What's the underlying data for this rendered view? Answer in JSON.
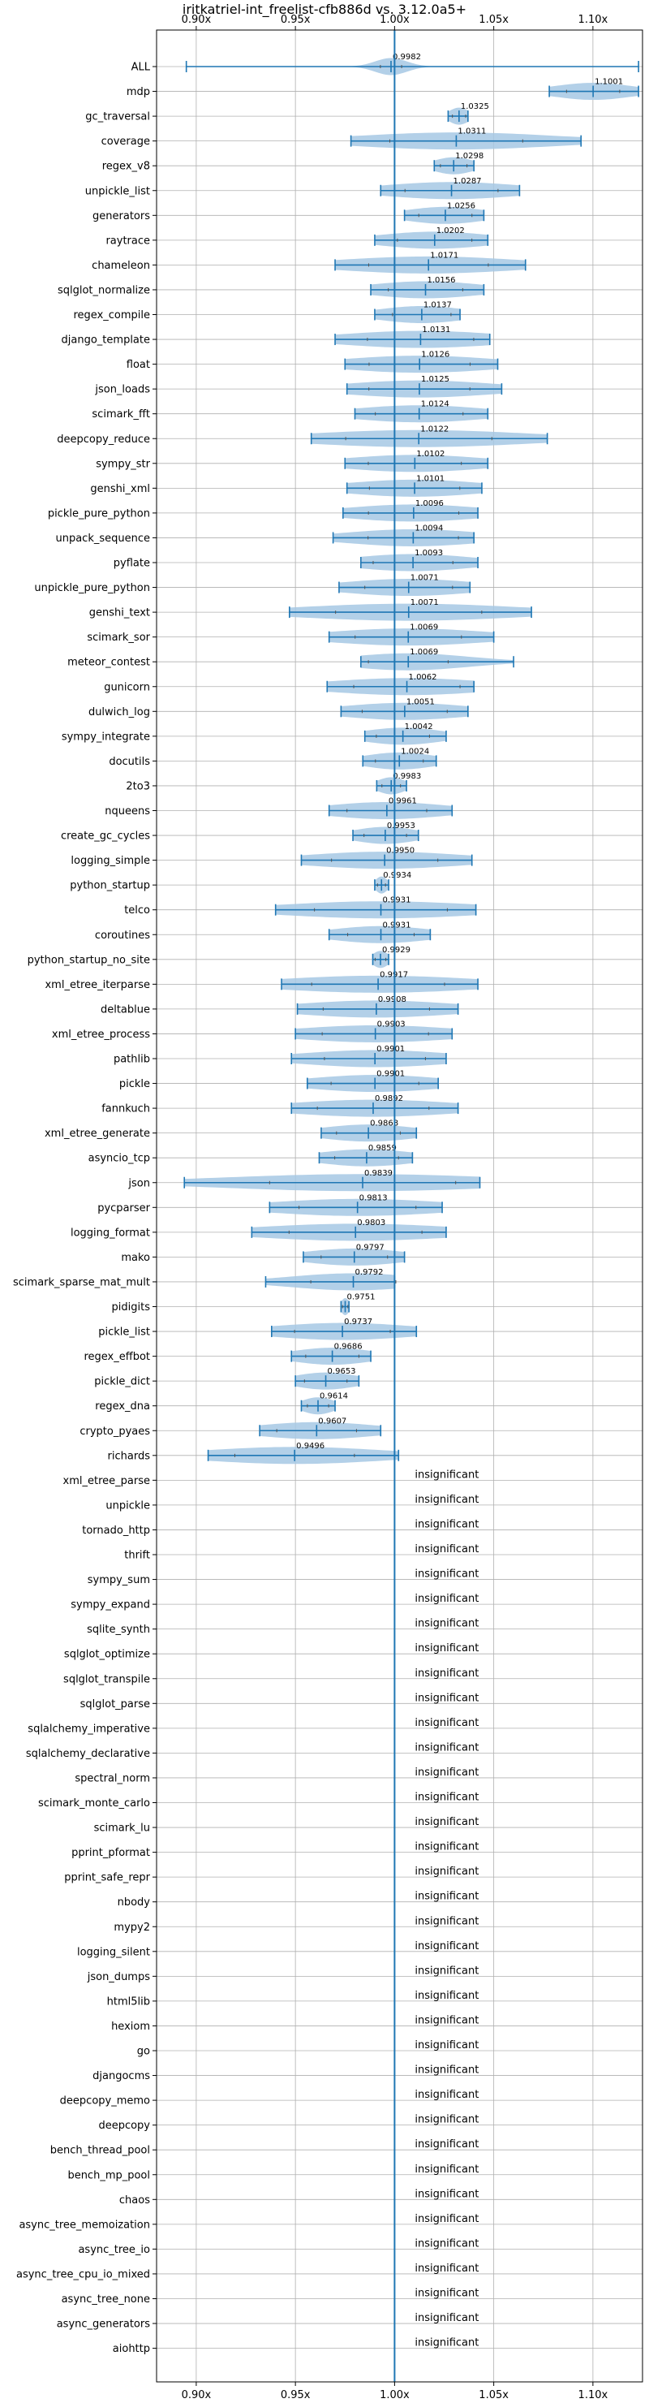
{
  "chart_data": {
    "type": "violin",
    "title": "iritkatriel-int_freelist-cfb886d vs. 3.12.0a5+",
    "xlim": [
      0.88,
      1.125
    ],
    "xticks": [
      "0.90x",
      "0.95x",
      "1.00x",
      "1.05x",
      "1.10x"
    ],
    "xtick_values": [
      0.9,
      0.95,
      1.0,
      1.05,
      1.1
    ],
    "reference_line": 1.0,
    "insignificant_label": "insignificant",
    "colors": {
      "violin": "#a6c8e4",
      "line": "#1f77b4",
      "grid": "#b0b0b0"
    },
    "benchmarks": [
      {
        "name": "ALL",
        "mean": 0.9982,
        "label": "0.9982",
        "min": 0.895,
        "max": 1.123,
        "spread": 0.008
      },
      {
        "name": "mdp",
        "mean": 1.1001,
        "label": "1.1001",
        "min": 1.078,
        "max": 1.123,
        "spread": 0.02
      },
      {
        "name": "gc_traversal",
        "mean": 1.0325,
        "label": "1.0325",
        "min": 1.027,
        "max": 1.037,
        "spread": 0.005
      },
      {
        "name": "coverage",
        "mean": 1.0311,
        "label": "1.0311",
        "min": 0.978,
        "max": 1.094,
        "spread": 0.05
      },
      {
        "name": "regex_v8",
        "mean": 1.0298,
        "label": "1.0298",
        "min": 1.02,
        "max": 1.04,
        "spread": 0.01
      },
      {
        "name": "unpickle_list",
        "mean": 1.0287,
        "label": "1.0287",
        "min": 0.993,
        "max": 1.063,
        "spread": 0.035
      },
      {
        "name": "generators",
        "mean": 1.0256,
        "label": "1.0256",
        "min": 1.005,
        "max": 1.045,
        "spread": 0.02
      },
      {
        "name": "raytrace",
        "mean": 1.0202,
        "label": "1.0202",
        "min": 0.99,
        "max": 1.047,
        "spread": 0.028
      },
      {
        "name": "chameleon",
        "mean": 1.0171,
        "label": "1.0171",
        "min": 0.97,
        "max": 1.066,
        "spread": 0.045
      },
      {
        "name": "sqlglot_normalize",
        "mean": 1.0156,
        "label": "1.0156",
        "min": 0.988,
        "max": 1.045,
        "spread": 0.028
      },
      {
        "name": "regex_compile",
        "mean": 1.0137,
        "label": "1.0137",
        "min": 0.99,
        "max": 1.033,
        "spread": 0.022
      },
      {
        "name": "django_template",
        "mean": 1.0131,
        "label": "1.0131",
        "min": 0.97,
        "max": 1.048,
        "spread": 0.04
      },
      {
        "name": "float",
        "mean": 1.0126,
        "label": "1.0126",
        "min": 0.975,
        "max": 1.052,
        "spread": 0.038
      },
      {
        "name": "json_loads",
        "mean": 1.0125,
        "label": "1.0125",
        "min": 0.976,
        "max": 1.054,
        "spread": 0.038
      },
      {
        "name": "scimark_fft",
        "mean": 1.0124,
        "label": "1.0124",
        "min": 0.98,
        "max": 1.047,
        "spread": 0.033
      },
      {
        "name": "deepcopy_reduce",
        "mean": 1.0122,
        "label": "1.0122",
        "min": 0.958,
        "max": 1.077,
        "spread": 0.055
      },
      {
        "name": "sympy_str",
        "mean": 1.0102,
        "label": "1.0102",
        "min": 0.975,
        "max": 1.047,
        "spread": 0.035
      },
      {
        "name": "genshi_xml",
        "mean": 1.0101,
        "label": "1.0101",
        "min": 0.976,
        "max": 1.044,
        "spread": 0.034
      },
      {
        "name": "pickle_pure_python",
        "mean": 1.0096,
        "label": "1.0096",
        "min": 0.974,
        "max": 1.042,
        "spread": 0.034
      },
      {
        "name": "unpack_sequence",
        "mean": 1.0094,
        "label": "1.0094",
        "min": 0.969,
        "max": 1.04,
        "spread": 0.034
      },
      {
        "name": "pyflate",
        "mean": 1.0093,
        "label": "1.0093",
        "min": 0.983,
        "max": 1.042,
        "spread": 0.03
      },
      {
        "name": "unpickle_pure_python",
        "mean": 1.0071,
        "label": "1.0071",
        "min": 0.972,
        "max": 1.038,
        "spread": 0.033
      },
      {
        "name": "genshi_text",
        "mean": 1.0071,
        "label": "1.0071",
        "min": 0.947,
        "max": 1.069,
        "spread": 0.055
      },
      {
        "name": "scimark_sor",
        "mean": 1.0069,
        "label": "1.0069",
        "min": 0.967,
        "max": 1.05,
        "spread": 0.04
      },
      {
        "name": "meteor_contest",
        "mean": 1.0069,
        "label": "1.0069",
        "min": 0.983,
        "max": 1.06,
        "spread": 0.03
      },
      {
        "name": "gunicorn",
        "mean": 1.0062,
        "label": "1.0062",
        "min": 0.966,
        "max": 1.04,
        "spread": 0.04
      },
      {
        "name": "dulwich_log",
        "mean": 1.0051,
        "label": "1.0051",
        "min": 0.973,
        "max": 1.037,
        "spread": 0.032
      },
      {
        "name": "sympy_integrate",
        "mean": 1.0042,
        "label": "1.0042",
        "min": 0.985,
        "max": 1.026,
        "spread": 0.02
      },
      {
        "name": "docutils",
        "mean": 1.0024,
        "label": "1.0024",
        "min": 0.984,
        "max": 1.021,
        "spread": 0.018
      },
      {
        "name": "2to3",
        "mean": 0.9983,
        "label": "0.9983",
        "min": 0.991,
        "max": 1.006,
        "spread": 0.007
      },
      {
        "name": "nqueens",
        "mean": 0.9961,
        "label": "0.9961",
        "min": 0.967,
        "max": 1.029,
        "spread": 0.03
      },
      {
        "name": "create_gc_cycles",
        "mean": 0.9953,
        "label": "0.9953",
        "min": 0.979,
        "max": 1.012,
        "spread": 0.016
      },
      {
        "name": "logging_simple",
        "mean": 0.995,
        "label": "0.9950",
        "min": 0.953,
        "max": 1.039,
        "spread": 0.04
      },
      {
        "name": "python_startup",
        "mean": 0.9934,
        "label": "0.9934",
        "min": 0.99,
        "max": 0.997,
        "spread": 0.003
      },
      {
        "name": "telco",
        "mean": 0.9931,
        "label": "0.9931",
        "min": 0.94,
        "max": 1.041,
        "spread": 0.05
      },
      {
        "name": "coroutines",
        "mean": 0.9931,
        "label": "0.9931",
        "min": 0.967,
        "max": 1.018,
        "spread": 0.025
      },
      {
        "name": "python_startup_no_site",
        "mean": 0.9929,
        "label": "0.9929",
        "min": 0.989,
        "max": 0.997,
        "spread": 0.004
      },
      {
        "name": "xml_etree_iterparse",
        "mean": 0.9917,
        "label": "0.9917",
        "min": 0.943,
        "max": 1.042,
        "spread": 0.05
      },
      {
        "name": "deltablue",
        "mean": 0.9908,
        "label": "0.9908",
        "min": 0.951,
        "max": 1.032,
        "spread": 0.04
      },
      {
        "name": "xml_etree_process",
        "mean": 0.9903,
        "label": "0.9903",
        "min": 0.95,
        "max": 1.029,
        "spread": 0.04
      },
      {
        "name": "pathlib",
        "mean": 0.9901,
        "label": "0.9901",
        "min": 0.948,
        "max": 1.026,
        "spread": 0.038
      },
      {
        "name": "pickle",
        "mean": 0.9901,
        "label": "0.9901",
        "min": 0.956,
        "max": 1.022,
        "spread": 0.033
      },
      {
        "name": "fannkuch",
        "mean": 0.9892,
        "label": "0.9892",
        "min": 0.948,
        "max": 1.032,
        "spread": 0.042
      },
      {
        "name": "xml_etree_generate",
        "mean": 0.9868,
        "label": "0.9868",
        "min": 0.963,
        "max": 1.011,
        "spread": 0.024
      },
      {
        "name": "asyncio_tcp",
        "mean": 0.9859,
        "label": "0.9859",
        "min": 0.962,
        "max": 1.009,
        "spread": 0.024
      },
      {
        "name": "json",
        "mean": 0.9839,
        "label": "0.9839",
        "min": 0.894,
        "max": 1.043,
        "spread": 0.07
      },
      {
        "name": "pycparser",
        "mean": 0.9813,
        "label": "0.9813",
        "min": 0.937,
        "max": 1.024,
        "spread": 0.044
      },
      {
        "name": "logging_format",
        "mean": 0.9803,
        "label": "0.9803",
        "min": 0.928,
        "max": 1.026,
        "spread": 0.05
      },
      {
        "name": "mako",
        "mean": 0.9797,
        "label": "0.9797",
        "min": 0.954,
        "max": 1.005,
        "spread": 0.025
      },
      {
        "name": "scimark_sparse_mat_mult",
        "mean": 0.9792,
        "label": "0.9792",
        "min": 0.935,
        "max": 1.0,
        "spread": 0.032
      },
      {
        "name": "pidigits",
        "mean": 0.9751,
        "label": "0.9751",
        "min": 0.973,
        "max": 0.977,
        "spread": 0.002
      },
      {
        "name": "pickle_list",
        "mean": 0.9737,
        "label": "0.9737",
        "min": 0.938,
        "max": 1.011,
        "spread": 0.036
      },
      {
        "name": "regex_effbot",
        "mean": 0.9686,
        "label": "0.9686",
        "min": 0.948,
        "max": 0.988,
        "spread": 0.02
      },
      {
        "name": "pickle_dict",
        "mean": 0.9653,
        "label": "0.9653",
        "min": 0.95,
        "max": 0.982,
        "spread": 0.016
      },
      {
        "name": "regex_dna",
        "mean": 0.9614,
        "label": "0.9614",
        "min": 0.953,
        "max": 0.97,
        "spread": 0.008
      },
      {
        "name": "crypto_pyaes",
        "mean": 0.9607,
        "label": "0.9607",
        "min": 0.932,
        "max": 0.993,
        "spread": 0.03
      },
      {
        "name": "richards",
        "mean": 0.9496,
        "label": "0.9496",
        "min": 0.906,
        "max": 1.002,
        "spread": 0.045
      },
      {
        "name": "xml_etree_parse",
        "insignificant": true
      },
      {
        "name": "unpickle",
        "insignificant": true
      },
      {
        "name": "tornado_http",
        "insignificant": true
      },
      {
        "name": "thrift",
        "insignificant": true
      },
      {
        "name": "sympy_sum",
        "insignificant": true
      },
      {
        "name": "sympy_expand",
        "insignificant": true
      },
      {
        "name": "sqlite_synth",
        "insignificant": true
      },
      {
        "name": "sqlglot_optimize",
        "insignificant": true
      },
      {
        "name": "sqlglot_transpile",
        "insignificant": true
      },
      {
        "name": "sqlglot_parse",
        "insignificant": true
      },
      {
        "name": "sqlalchemy_imperative",
        "insignificant": true
      },
      {
        "name": "sqlalchemy_declarative",
        "insignificant": true
      },
      {
        "name": "spectral_norm",
        "insignificant": true
      },
      {
        "name": "scimark_monte_carlo",
        "insignificant": true
      },
      {
        "name": "scimark_lu",
        "insignificant": true
      },
      {
        "name": "pprint_pformat",
        "insignificant": true
      },
      {
        "name": "pprint_safe_repr",
        "insignificant": true
      },
      {
        "name": "nbody",
        "insignificant": true
      },
      {
        "name": "mypy2",
        "insignificant": true
      },
      {
        "name": "logging_silent",
        "insignificant": true
      },
      {
        "name": "json_dumps",
        "insignificant": true
      },
      {
        "name": "html5lib",
        "insignificant": true
      },
      {
        "name": "hexiom",
        "insignificant": true
      },
      {
        "name": "go",
        "insignificant": true
      },
      {
        "name": "djangocms",
        "insignificant": true
      },
      {
        "name": "deepcopy_memo",
        "insignificant": true
      },
      {
        "name": "deepcopy",
        "insignificant": true
      },
      {
        "name": "bench_thread_pool",
        "insignificant": true
      },
      {
        "name": "bench_mp_pool",
        "insignificant": true
      },
      {
        "name": "chaos",
        "insignificant": true
      },
      {
        "name": "async_tree_memoization",
        "insignificant": true
      },
      {
        "name": "async_tree_io",
        "insignificant": true
      },
      {
        "name": "async_tree_cpu_io_mixed",
        "insignificant": true
      },
      {
        "name": "async_tree_none",
        "insignificant": true
      },
      {
        "name": "async_generators",
        "insignificant": true
      },
      {
        "name": "aiohttp",
        "insignificant": true
      }
    ]
  }
}
